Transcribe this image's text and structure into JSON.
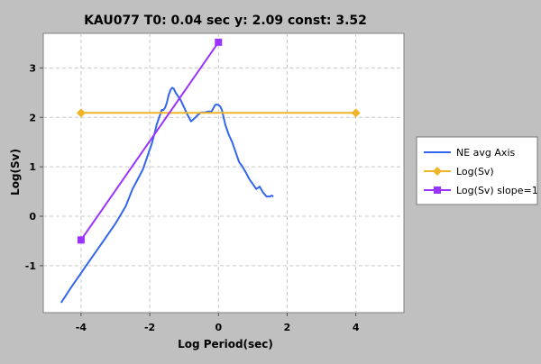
{
  "chart_data": {
    "type": "line",
    "title": "KAU077 T0: 0.04 sec  y: 2.09 const: 3.52",
    "xlabel": "Log Period(sec)",
    "ylabel": "Log(Sv)",
    "xlim": [
      -5.1,
      5.4
    ],
    "ylim": [
      -1.95,
      3.7
    ],
    "xticks": [
      "-4",
      "-2",
      "0",
      "2",
      "4"
    ],
    "xtick_values": [
      -4,
      -2,
      0,
      2,
      4
    ],
    "yticks": [
      "-1",
      "0",
      "1",
      "2",
      "3"
    ],
    "ytick_values": [
      -1,
      0,
      1,
      2,
      3
    ],
    "grid": true,
    "legend_position": "right",
    "series": [
      {
        "name": "NE avg Axis",
        "color": "#3366ee",
        "marker": "none",
        "x": [
          -4.58,
          -4.3,
          -4.0,
          -3.7,
          -3.4,
          -3.0,
          -2.7,
          -2.5,
          -2.35,
          -2.2,
          -2.1,
          -2.0,
          -1.95,
          -1.85,
          -1.8,
          -1.75,
          -1.7,
          -1.65,
          -1.6,
          -1.55,
          -1.5,
          -1.45,
          -1.4,
          -1.35,
          -1.3,
          -1.25,
          -1.2,
          -1.15,
          -1.1,
          -1.0,
          -0.9,
          -0.8,
          -0.7,
          -0.6,
          -0.5,
          -0.4,
          -0.3,
          -0.2,
          -0.1,
          -0.05,
          0.0,
          0.05,
          0.1,
          0.15,
          0.2,
          0.3,
          0.4,
          0.5,
          0.6,
          0.7,
          0.8,
          0.9,
          1.0,
          1.1,
          1.2,
          1.3,
          1.4,
          1.5,
          1.55,
          1.6
        ],
        "y": [
          -1.75,
          -1.45,
          -1.15,
          -0.85,
          -0.55,
          -0.15,
          0.2,
          0.55,
          0.75,
          0.95,
          1.15,
          1.35,
          1.45,
          1.7,
          1.85,
          1.95,
          2.05,
          2.15,
          2.15,
          2.2,
          2.3,
          2.45,
          2.55,
          2.6,
          2.58,
          2.5,
          2.45,
          2.4,
          2.35,
          2.2,
          2.05,
          1.92,
          1.98,
          2.05,
          2.1,
          2.1,
          2.12,
          2.12,
          2.25,
          2.26,
          2.25,
          2.22,
          2.15,
          2.0,
          1.85,
          1.65,
          1.5,
          1.3,
          1.1,
          1.0,
          0.88,
          0.75,
          0.65,
          0.55,
          0.6,
          0.48,
          0.4,
          0.4,
          0.42,
          0.4
        ]
      },
      {
        "name": "Log(Sv)",
        "color": "#f0b428",
        "marker": "diamond",
        "x": [
          -4,
          4
        ],
        "y": [
          2.09,
          2.09
        ]
      },
      {
        "name": "Log(Sv) slope=1",
        "color": "#9933ff",
        "marker": "square",
        "x": [
          -4,
          0
        ],
        "y": [
          -0.48,
          3.52
        ]
      }
    ]
  }
}
